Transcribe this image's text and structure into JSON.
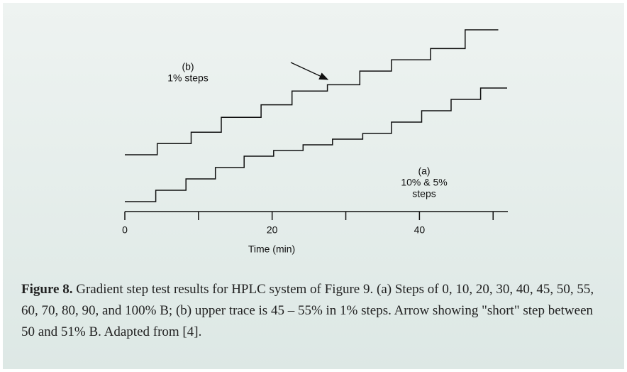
{
  "chart_data": {
    "type": "line",
    "xlabel": "Time (min)",
    "xlim": [
      0,
      52
    ],
    "xticks": [
      0,
      20,
      40
    ],
    "xticks_minor": [
      10,
      30,
      50
    ],
    "ylim": [
      0,
      151.25
    ],
    "y2lim": [
      41.25,
      55
    ],
    "series": [
      {
        "label_lines": [
          "(a)",
          "10% & 5%",
          "steps"
        ],
        "color": "#111111",
        "axis": "y",
        "x": [
          0,
          4.2,
          4.2,
          8.3,
          8.3,
          12.3,
          12.3,
          16.2,
          16.2,
          20.2,
          20.2,
          24.2,
          24.2,
          28.2,
          28.2,
          32.3,
          32.3,
          36.2,
          36.2,
          40.3,
          40.3,
          44.3,
          44.3,
          48.3,
          48.3,
          51.9
        ],
        "values": [
          0,
          0,
          10,
          10,
          20,
          20,
          30,
          30,
          40,
          40,
          45,
          45,
          50,
          50,
          55,
          55,
          60,
          60,
          70,
          70,
          80,
          80,
          90,
          90,
          100,
          100
        ]
      },
      {
        "label_lines": [
          "(b)",
          "1% steps"
        ],
        "color": "#111111",
        "axis": "y2",
        "x": [
          0,
          4.4,
          4.4,
          9.0,
          9.0,
          13.1,
          13.1,
          18.5,
          18.5,
          22.7,
          22.7,
          27.5,
          27.5,
          31.9,
          31.9,
          36.2,
          36.2,
          41.5,
          41.5,
          46.2,
          46.2,
          50.7
        ],
        "values": [
          45,
          45,
          45.9,
          45.9,
          46.8,
          46.8,
          48,
          48,
          49,
          49,
          50.1,
          50.1,
          50.6,
          50.6,
          51.7,
          51.7,
          52.6,
          52.6,
          53.5,
          53.5,
          55,
          55
        ]
      }
    ]
  },
  "caption": {
    "label": "Figure 8.",
    "text": "Gradient step test results for HPLC system of Figure 9. (a) Steps of 0, 10, 20, 30, 40, 45, 50, 55, 60, 70, 80, 90, and 100% B;  (b) upper trace is 45 – 55% in 1% steps. Arrow showing \"short\" step between 50 and 51% B. Adapted from [4]."
  }
}
